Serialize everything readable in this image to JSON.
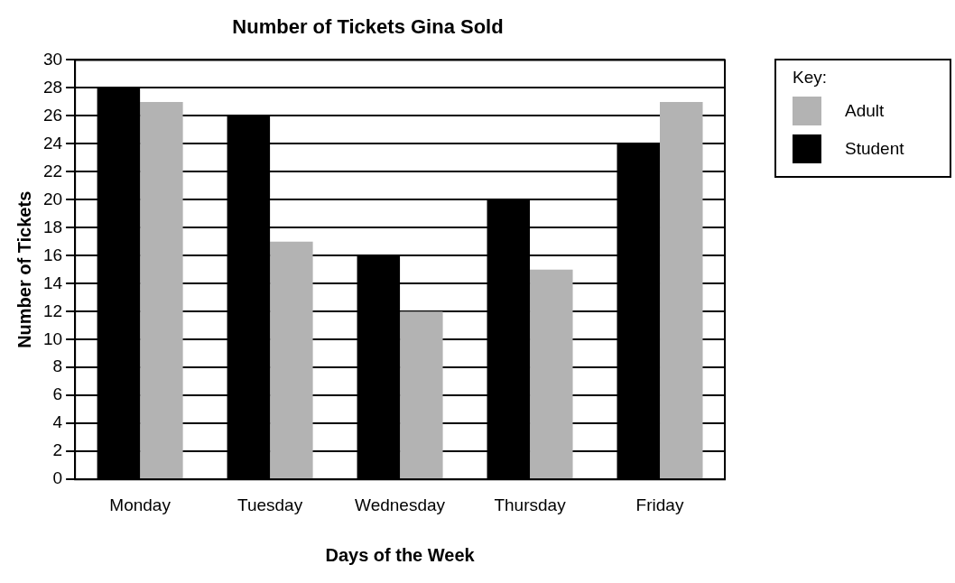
{
  "chart_data": {
    "type": "bar",
    "title": "Number of Tickets Gina Sold",
    "xlabel": "Days of the Week",
    "ylabel": "Number of Tickets",
    "legend_title": "Key:",
    "categories": [
      "Monday",
      "Tuesday",
      "Wednesday",
      "Thursday",
      "Friday"
    ],
    "series": [
      {
        "name": "Student",
        "color": "#000000",
        "values": [
          28,
          26,
          16,
          20,
          24
        ]
      },
      {
        "name": "Adult",
        "color": "#b3b3b3",
        "values": [
          27,
          17,
          12,
          15,
          27
        ]
      }
    ],
    "ylim": [
      0,
      30
    ],
    "yticks": [
      0,
      2,
      4,
      6,
      8,
      10,
      12,
      14,
      16,
      18,
      20,
      22,
      24,
      26,
      28,
      30
    ],
    "grid": "y",
    "legend": "top right"
  }
}
